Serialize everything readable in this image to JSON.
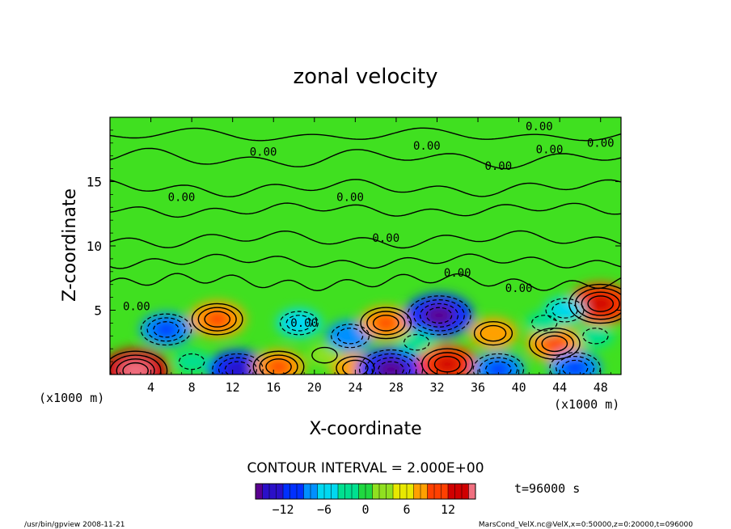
{
  "chart_data": {
    "type": "heatmap",
    "title": "zonal velocity",
    "xlabel": "X-coordinate",
    "ylabel": "Z-coordinate",
    "x_units_left": "(x1000 m)",
    "x_units_right": "(x1000 m)",
    "xlim": [
      0,
      50
    ],
    "ylim": [
      0,
      20
    ],
    "x_ticks": [
      "4",
      "8",
      "12",
      "16",
      "20",
      "24",
      "28",
      "32",
      "36",
      "40",
      "44",
      "48"
    ],
    "x_tick_values": [
      4,
      8,
      12,
      16,
      20,
      24,
      28,
      32,
      36,
      40,
      44,
      48
    ],
    "y_ticks": [
      "5",
      "10",
      "15"
    ],
    "y_tick_values": [
      5,
      10,
      15
    ],
    "contour_labels": [
      "0.00",
      "0.00",
      "0.00",
      "0.00",
      "0.00",
      "0.00",
      "0.00",
      "0.00",
      "0.00",
      "0.00",
      "0.00",
      "0.00",
      "0.00"
    ],
    "contour_interval_text": "CONTOUR INTERVAL = 2.000E+00",
    "colorbar": {
      "min": -16,
      "max": 16,
      "ticks": [
        "−12",
        "−6",
        "0",
        "6",
        "12"
      ],
      "tick_values": [
        -12,
        -6,
        0,
        6,
        12
      ],
      "colors": [
        "#5a0090",
        "#2a10c8",
        "#0030ff",
        "#0090ff",
        "#00d8f0",
        "#00e090",
        "#20d840",
        "#90e020",
        "#e8e800",
        "#ffa000",
        "#ff4000",
        "#d00000",
        "#f07080"
      ]
    },
    "time_text": "t=96000 s",
    "features": [
      {
        "x": 2.5,
        "z": 0.3,
        "value": 12
      },
      {
        "x": 5.5,
        "z": 3.5,
        "value": -8
      },
      {
        "x": 10.5,
        "z": 4.3,
        "value": 9
      },
      {
        "x": 12.5,
        "z": 0.4,
        "value": -10
      },
      {
        "x": 16.5,
        "z": 0.6,
        "value": 8
      },
      {
        "x": 18.5,
        "z": 4.0,
        "value": -6
      },
      {
        "x": 23.5,
        "z": 3.0,
        "value": -7
      },
      {
        "x": 24.0,
        "z": 0.5,
        "value": 7
      },
      {
        "x": 27.5,
        "z": 0.4,
        "value": -12
      },
      {
        "x": 27.0,
        "z": 4.0,
        "value": 8
      },
      {
        "x": 32.2,
        "z": 4.6,
        "value": -12
      },
      {
        "x": 33.0,
        "z": 0.8,
        "value": 10
      },
      {
        "x": 37.5,
        "z": 3.2,
        "value": 7
      },
      {
        "x": 38.0,
        "z": 0.4,
        "value": -8
      },
      {
        "x": 43.5,
        "z": 2.4,
        "value": 9
      },
      {
        "x": 45.5,
        "z": 0.5,
        "value": -8
      },
      {
        "x": 48.0,
        "z": 5.5,
        "value": 11
      },
      {
        "x": 47.5,
        "z": 3.0,
        "value": -4
      },
      {
        "x": 44.5,
        "z": 5.0,
        "value": -5
      },
      {
        "x": 42.5,
        "z": 4.0,
        "value": -4
      },
      {
        "x": 30.0,
        "z": 2.5,
        "value": -4
      },
      {
        "x": 21.0,
        "z": 1.5,
        "value": 3
      },
      {
        "x": 8.0,
        "z": 1.0,
        "value": -4
      }
    ]
  },
  "footer": {
    "left": "/usr/bin/gpview   2008-11-21",
    "right": "MarsCond_VelX.nc@VelX,x=0:50000,z=0:20000,t=096000"
  },
  "colors": {
    "background": "#ffffff",
    "field_base": "#40e020"
  }
}
